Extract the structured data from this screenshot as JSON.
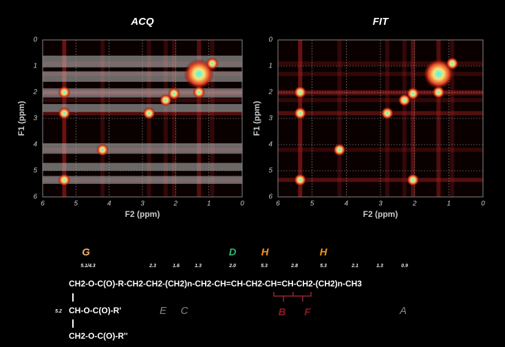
{
  "chart_data": [
    {
      "type": "contour",
      "title": "ACQ",
      "x_label": "F2 (ppm)",
      "y_label": "F1 (ppm)",
      "xlim": [
        6,
        0
      ],
      "ylim": [
        6,
        0
      ],
      "xticks": [
        6,
        5,
        4,
        3,
        2,
        1,
        0
      ],
      "yticks": [
        0,
        1,
        2,
        3,
        4,
        5,
        6
      ],
      "grid": true,
      "peaks": {
        "x": [
          5.35,
          4.2,
          2.8,
          2.3,
          2.05,
          1.3,
          0.9,
          5.35,
          5.35,
          1.3
        ],
        "y": [
          5.35,
          4.2,
          2.8,
          2.3,
          2.05,
          1.3,
          0.9,
          2.0,
          2.8,
          2.0
        ]
      },
      "bands": [
        [
          0.6,
          1.05
        ],
        [
          1.2,
          1.6
        ],
        [
          1.85,
          2.2
        ],
        [
          2.45,
          2.75
        ],
        [
          3.95,
          4.35
        ],
        [
          4.7,
          5.0
        ],
        [
          5.2,
          5.5
        ]
      ]
    },
    {
      "type": "contour",
      "title": "FIT",
      "x_label": "F2 (ppm)",
      "y_label": "F1 (ppm)",
      "xlim": [
        6,
        0
      ],
      "ylim": [
        6,
        0
      ],
      "xticks": [
        6,
        5,
        4,
        3,
        2,
        1,
        0
      ],
      "yticks": [
        0,
        1,
        2,
        3,
        4,
        5,
        6
      ],
      "grid": true,
      "peaks": {
        "x": [
          5.35,
          4.2,
          2.8,
          2.3,
          2.05,
          1.3,
          0.9,
          5.35,
          5.35,
          2.05,
          1.3
        ],
        "y": [
          5.35,
          4.2,
          2.8,
          2.3,
          2.05,
          1.3,
          0.9,
          2.0,
          2.8,
          5.35,
          2.0
        ]
      }
    }
  ],
  "structure": {
    "letters": [
      "G",
      "D",
      "H",
      "H",
      "E",
      "C",
      "B",
      "F",
      "A"
    ],
    "shifts": [
      "5.1/4.3",
      "2.3",
      "1.6",
      "1.3",
      "2.0",
      "5.3",
      "2.8",
      "5.3",
      "2.1",
      "1.3",
      "0.9",
      "5.2"
    ],
    "formula": [
      "CH2-O-C(O)-R-CH2-CH2-(CH2)n-CH2-CH=CH-CH2-CH=CH-CH2-(CH2)n-CH3",
      "CH-O-C(O)-R'",
      "CH2-O-C(O)-R''"
    ]
  }
}
